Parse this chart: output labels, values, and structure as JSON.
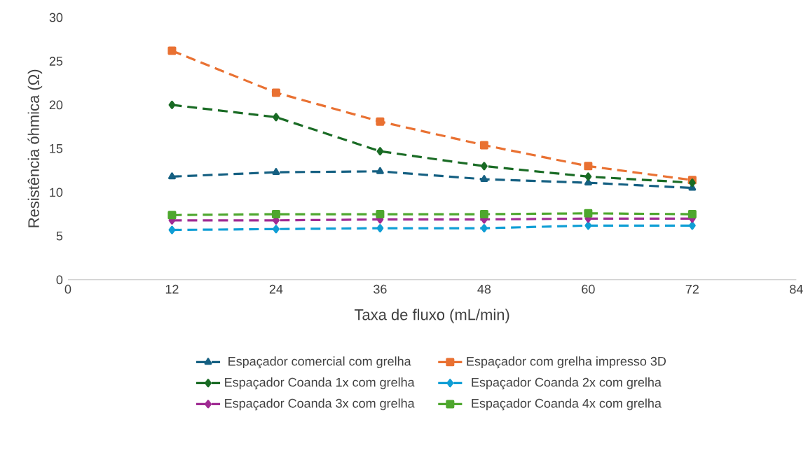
{
  "chart_data": {
    "type": "line",
    "xlabel": "Taxa de fluxo (mL/min)",
    "ylabel": "Resistência óhmica (Ω)",
    "x": [
      12,
      24,
      36,
      48,
      60,
      72
    ],
    "xlim": [
      0,
      84
    ],
    "xticks": [
      0,
      12,
      24,
      36,
      48,
      60,
      72,
      84
    ],
    "ylim": [
      0,
      30
    ],
    "yticks": [
      0,
      5,
      10,
      15,
      20,
      25,
      30
    ],
    "grid": false,
    "legend": "bottom",
    "line_style": "dashed",
    "series": [
      {
        "name": "Espaçador comercial com grelha",
        "color": "#156082",
        "marker": "triangle",
        "values": [
          11.8,
          12.3,
          12.4,
          11.5,
          11.1,
          10.5
        ]
      },
      {
        "name": "Espaçador com grelha impresso 3D",
        "color": "#e97132",
        "marker": "square",
        "values": [
          26.2,
          21.4,
          18.1,
          15.4,
          13.0,
          11.4
        ]
      },
      {
        "name": "Espaçador Coanda 1x com grelha",
        "color": "#196b24",
        "marker": "diamond",
        "values": [
          20.0,
          18.6,
          14.7,
          13.0,
          11.8,
          11.1
        ]
      },
      {
        "name": "Espaçador Coanda 2x com grelha",
        "color": "#0f9ed5",
        "marker": "diamond",
        "values": [
          5.7,
          5.8,
          5.9,
          5.9,
          6.2,
          6.2
        ]
      },
      {
        "name": "Espaçador Coanda 3x com grelha",
        "color": "#a02b93",
        "marker": "diamond",
        "values": [
          6.8,
          6.8,
          6.9,
          6.9,
          7.0,
          7.0
        ]
      },
      {
        "name": "Espaçador Coanda 4x com grelha",
        "color": "#4ea72e",
        "marker": "square",
        "values": [
          7.4,
          7.5,
          7.5,
          7.5,
          7.6,
          7.5
        ]
      }
    ]
  }
}
